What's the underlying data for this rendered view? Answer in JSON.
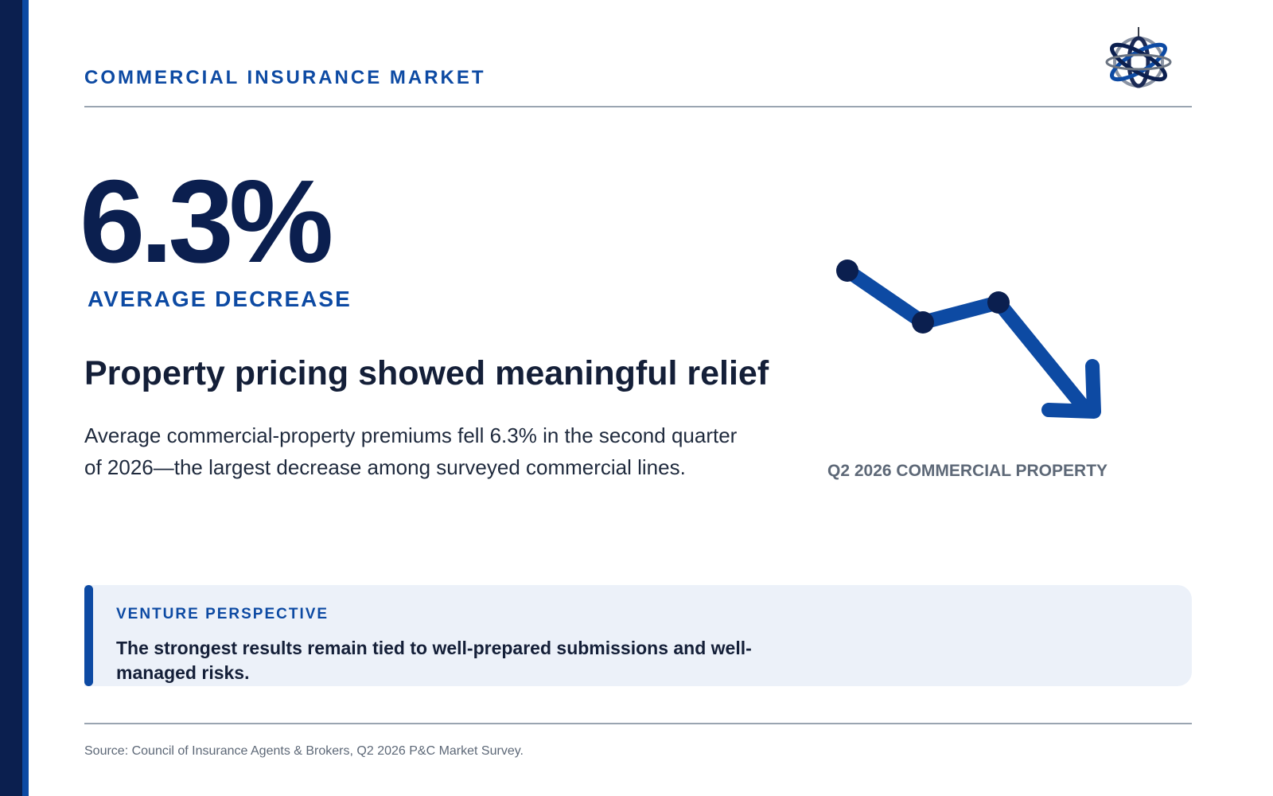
{
  "header": {
    "label": "COMMERCIAL INSURANCE MARKET"
  },
  "logo": {
    "icon": "globe-logo-icon"
  },
  "stat": {
    "value": "6.3%",
    "label": "AVERAGE DECREASE"
  },
  "headline": "Property pricing showed meaningful relief",
  "body": "Average commercial-property premiums fell 6.3% in the second quarter of 2026—the largest decrease among surveyed commercial lines.",
  "trend": {
    "icon": "downward-trend-arrow-icon",
    "caption": "Q2 2026 COMMERCIAL PROPERTY"
  },
  "callout": {
    "title": "VENTURE PERSPECTIVE",
    "text": "The strongest results remain tied to well-prepared submissions and well-managed risks."
  },
  "source": "Source: Council of Insurance Agents & Brokers, Q2 2026 P&C Market Survey.",
  "colors": {
    "navy": "#0b1f4f",
    "accent": "#0d4aa3",
    "muted": "#5d6877",
    "callout_bg": "#ecf1f9"
  }
}
